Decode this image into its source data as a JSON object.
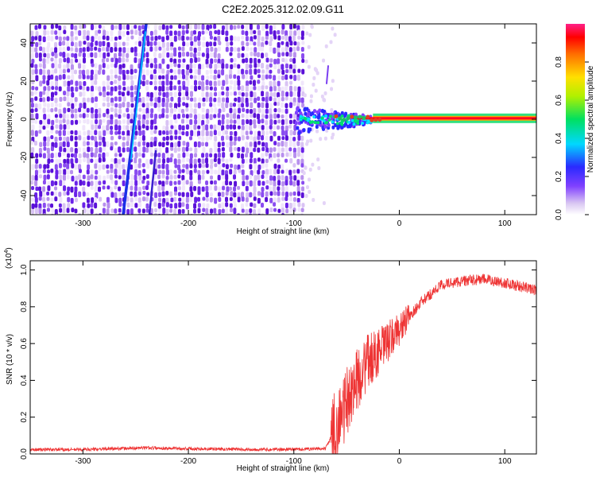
{
  "title": "C2E2.2025.312.02.09.G11",
  "chart_data": [
    {
      "type": "heatmap",
      "xlabel": "Height of straight line (km)",
      "ylabel": "Frequency (Hz)",
      "xlim": [
        -350,
        130
      ],
      "ylim": [
        -50,
        50
      ],
      "x_ticks": [
        -300,
        -200,
        -100,
        0,
        100
      ],
      "y_ticks": [
        -40,
        -20,
        0,
        20,
        40
      ],
      "noise_region_x": [
        -350,
        -92
      ],
      "signal_line_freq": 0.5,
      "colorbar": {
        "label": "Normalized spectral amplitude",
        "range": [
          0.0,
          1.0
        ],
        "ticks": [
          "0.0",
          "0.2",
          "0.4",
          "0.6",
          "0.8"
        ]
      }
    },
    {
      "type": "line",
      "xlabel": "Height of straight line (km)",
      "ylabel": "SNR (10 * v/v)",
      "exponent_label": "(x10",
      "exponent_power": "4",
      "exponent_close": ")",
      "xlim": [
        -350,
        130
      ],
      "ylim": [
        0,
        1.05
      ],
      "x_ticks": [
        -300,
        -200,
        -100,
        0,
        100
      ],
      "y_ticks": [
        "0.0",
        "0.2",
        "0.4",
        "0.6",
        "0.8",
        "1.0"
      ],
      "color": "#ee3333",
      "envelope": {
        "x": [
          -350,
          -300,
          -240,
          -200,
          -120,
          -70,
          -62,
          -55,
          -45,
          -30,
          -15,
          0,
          20,
          40,
          60,
          80,
          100,
          130
        ],
        "y": [
          0.02,
          0.02,
          0.03,
          0.025,
          0.02,
          0.025,
          0.12,
          0.2,
          0.35,
          0.5,
          0.58,
          0.68,
          0.82,
          0.92,
          0.94,
          0.95,
          0.93,
          0.89
        ]
      }
    }
  ]
}
